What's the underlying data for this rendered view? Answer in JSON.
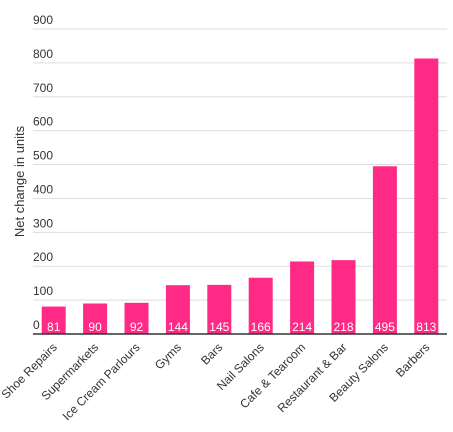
{
  "chart_data": {
    "type": "bar",
    "categories": [
      "Shoe Repairs",
      "Supermarkets",
      "Ice Cream Parlours",
      "Gyms",
      "Bars",
      "Nail Salons",
      "Cafe & Tearoom",
      "Restaurant & Bar",
      "Beauty Salons",
      "Barbers"
    ],
    "values": [
      81,
      90,
      92,
      144,
      145,
      166,
      214,
      218,
      495,
      813
    ],
    "ylabel": "Net change in units",
    "ylim": [
      0,
      900
    ],
    "yticks": [
      0,
      100,
      200,
      300,
      400,
      500,
      600,
      700,
      800,
      900
    ],
    "grid": true,
    "bar_color": "#ff2a85",
    "grid_color": "#dddddd",
    "axis_color": "#333333",
    "value_label_color": "#ffffff"
  }
}
